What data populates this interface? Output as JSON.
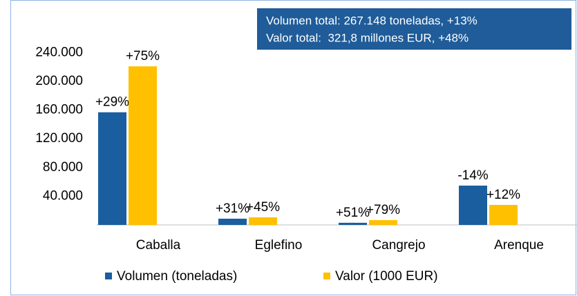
{
  "chart_data": {
    "type": "bar",
    "categories": [
      "Caballa",
      "Eglefino",
      "Cangrejo",
      "Arenque"
    ],
    "series": [
      {
        "name": "Volumen (toneladas)",
        "color": "#1a5ea0",
        "values": [
          157000,
          8700,
          3000,
          54800
        ],
        "annotations": [
          "+29%",
          "+31%",
          "+51%",
          "-14%"
        ]
      },
      {
        "name": "Valor (1000 EUR)",
        "color": "#ffc000",
        "values": [
          221000,
          10600,
          6700,
          27900
        ],
        "annotations": [
          "+75%",
          "+45%",
          "+79%",
          "+12%"
        ]
      }
    ],
    "ylim": [
      0,
      250000
    ],
    "yticks": [
      {
        "value": 40000,
        "label": "40.000"
      },
      {
        "value": 80000,
        "label": "80.000"
      },
      {
        "value": 120000,
        "label": "120.000"
      },
      {
        "value": 160000,
        "label": "160.000"
      },
      {
        "value": 200000,
        "label": "200.000"
      },
      {
        "value": 240000,
        "label": "240.000"
      }
    ],
    "annotation_box": [
      "Volumen total: 267.148 toneladas, +13%",
      "Valor total:  321,8 millones EUR, +48%"
    ],
    "legend": "bottom"
  }
}
